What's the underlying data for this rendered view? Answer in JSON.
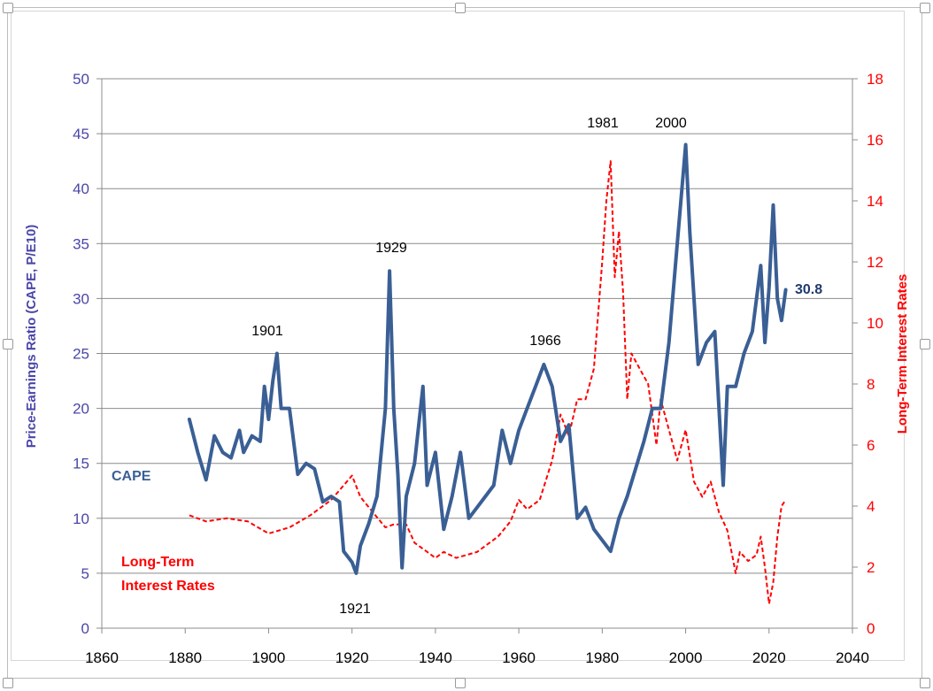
{
  "chart_data": {
    "type": "line",
    "xlim": [
      1860,
      2040
    ],
    "xticks": [
      1860,
      1880,
      1900,
      1920,
      1940,
      1960,
      1980,
      2000,
      2020,
      2040
    ],
    "ylim_left": [
      0,
      50
    ],
    "yticks_left": [
      0,
      5,
      10,
      15,
      20,
      25,
      30,
      35,
      40,
      45,
      50
    ],
    "ylim_right": [
      0,
      18
    ],
    "yticks_right": [
      0,
      2,
      4,
      6,
      8,
      10,
      12,
      14,
      16,
      18
    ],
    "ylabel_left": "Price-Earnings Ratio (CAPE, P/E10)",
    "ylabel_right": "Long-Term Interest Rates",
    "grid": "horizontal",
    "colors": {
      "cape": "#3a5f95",
      "rates": "#ff0000",
      "left_axis": "#4a46a8",
      "right_axis": "#ff0000"
    },
    "series": [
      {
        "name": "CAPE",
        "axis": "left",
        "style": "solid",
        "points": [
          [
            1881,
            19
          ],
          [
            1883,
            16
          ],
          [
            1885,
            13.5
          ],
          [
            1887,
            17.5
          ],
          [
            1889,
            16
          ],
          [
            1891,
            15.5
          ],
          [
            1893,
            18
          ],
          [
            1894,
            16
          ],
          [
            1896,
            17.5
          ],
          [
            1898,
            17
          ],
          [
            1899,
            22
          ],
          [
            1900,
            19
          ],
          [
            1901,
            22.5
          ],
          [
            1902,
            25
          ],
          [
            1903,
            20
          ],
          [
            1905,
            20
          ],
          [
            1907,
            14
          ],
          [
            1909,
            15
          ],
          [
            1911,
            14.5
          ],
          [
            1913,
            11.5
          ],
          [
            1915,
            12
          ],
          [
            1917,
            11.5
          ],
          [
            1918,
            7
          ],
          [
            1920,
            6
          ],
          [
            1921,
            5
          ],
          [
            1922,
            7.5
          ],
          [
            1924,
            9.5
          ],
          [
            1926,
            12
          ],
          [
            1928,
            20
          ],
          [
            1929,
            32.5
          ],
          [
            1930,
            20
          ],
          [
            1931,
            14
          ],
          [
            1932,
            5.5
          ],
          [
            1933,
            12
          ],
          [
            1935,
            15
          ],
          [
            1937,
            22
          ],
          [
            1938,
            13
          ],
          [
            1940,
            16
          ],
          [
            1942,
            9
          ],
          [
            1944,
            12
          ],
          [
            1946,
            16
          ],
          [
            1948,
            10
          ],
          [
            1950,
            11
          ],
          [
            1952,
            12
          ],
          [
            1954,
            13
          ],
          [
            1956,
            18
          ],
          [
            1958,
            15
          ],
          [
            1960,
            18
          ],
          [
            1962,
            20
          ],
          [
            1964,
            22
          ],
          [
            1966,
            24
          ],
          [
            1968,
            22
          ],
          [
            1970,
            17
          ],
          [
            1972,
            18.5
          ],
          [
            1974,
            10
          ],
          [
            1976,
            11
          ],
          [
            1978,
            9
          ],
          [
            1980,
            8
          ],
          [
            1982,
            7
          ],
          [
            1984,
            10
          ],
          [
            1986,
            12
          ],
          [
            1988,
            14.5
          ],
          [
            1990,
            17
          ],
          [
            1992,
            20
          ],
          [
            1994,
            20
          ],
          [
            1996,
            26
          ],
          [
            1998,
            35
          ],
          [
            2000,
            44
          ],
          [
            2001,
            36
          ],
          [
            2003,
            24
          ],
          [
            2005,
            26
          ],
          [
            2007,
            27
          ],
          [
            2009,
            13
          ],
          [
            2010,
            22
          ],
          [
            2012,
            22
          ],
          [
            2014,
            25
          ],
          [
            2016,
            27
          ],
          [
            2018,
            33
          ],
          [
            2019,
            26
          ],
          [
            2020,
            31
          ],
          [
            2021,
            38.5
          ],
          [
            2022,
            30
          ],
          [
            2023,
            28
          ],
          [
            2024,
            30.8
          ]
        ]
      },
      {
        "name": "Long-Term Interest Rates",
        "axis": "right",
        "style": "dashed",
        "points": [
          [
            1881,
            3.7
          ],
          [
            1885,
            3.5
          ],
          [
            1890,
            3.6
          ],
          [
            1895,
            3.5
          ],
          [
            1900,
            3.1
          ],
          [
            1905,
            3.3
          ],
          [
            1910,
            3.7
          ],
          [
            1915,
            4.2
          ],
          [
            1920,
            5.0
          ],
          [
            1922,
            4.3
          ],
          [
            1925,
            3.8
          ],
          [
            1928,
            3.3
          ],
          [
            1930,
            3.4
          ],
          [
            1933,
            3.4
          ],
          [
            1935,
            2.8
          ],
          [
            1940,
            2.3
          ],
          [
            1942,
            2.5
          ],
          [
            1945,
            2.3
          ],
          [
            1950,
            2.5
          ],
          [
            1953,
            2.8
          ],
          [
            1955,
            3.0
          ],
          [
            1958,
            3.5
          ],
          [
            1960,
            4.2
          ],
          [
            1962,
            3.9
          ],
          [
            1965,
            4.2
          ],
          [
            1968,
            5.5
          ],
          [
            1970,
            7.0
          ],
          [
            1972,
            6.3
          ],
          [
            1974,
            7.5
          ],
          [
            1976,
            7.5
          ],
          [
            1978,
            8.5
          ],
          [
            1980,
            12.0
          ],
          [
            1981,
            14.0
          ],
          [
            1982,
            15.3
          ],
          [
            1983,
            11.5
          ],
          [
            1984,
            13.0
          ],
          [
            1985,
            11.0
          ],
          [
            1986,
            7.5
          ],
          [
            1987,
            9.0
          ],
          [
            1989,
            8.5
          ],
          [
            1991,
            8.0
          ],
          [
            1993,
            6.0
          ],
          [
            1994,
            7.5
          ],
          [
            1996,
            6.5
          ],
          [
            1998,
            5.5
          ],
          [
            2000,
            6.5
          ],
          [
            2002,
            4.8
          ],
          [
            2004,
            4.3
          ],
          [
            2006,
            4.8
          ],
          [
            2008,
            3.8
          ],
          [
            2010,
            3.2
          ],
          [
            2012,
            1.8
          ],
          [
            2013,
            2.5
          ],
          [
            2015,
            2.2
          ],
          [
            2017,
            2.4
          ],
          [
            2018,
            3.0
          ],
          [
            2019,
            2.0
          ],
          [
            2020,
            0.8
          ],
          [
            2021,
            1.5
          ],
          [
            2022,
            3.0
          ],
          [
            2023,
            4.0
          ],
          [
            2024,
            4.2
          ]
        ]
      }
    ],
    "labels": {
      "cape_series": "CAPE",
      "rates_line1": "Long-Term",
      "rates_line2": "Interest Rates",
      "current_value": "30.8",
      "years": [
        "1901",
        "1929",
        "1966",
        "1981",
        "2000",
        "1921"
      ]
    }
  }
}
